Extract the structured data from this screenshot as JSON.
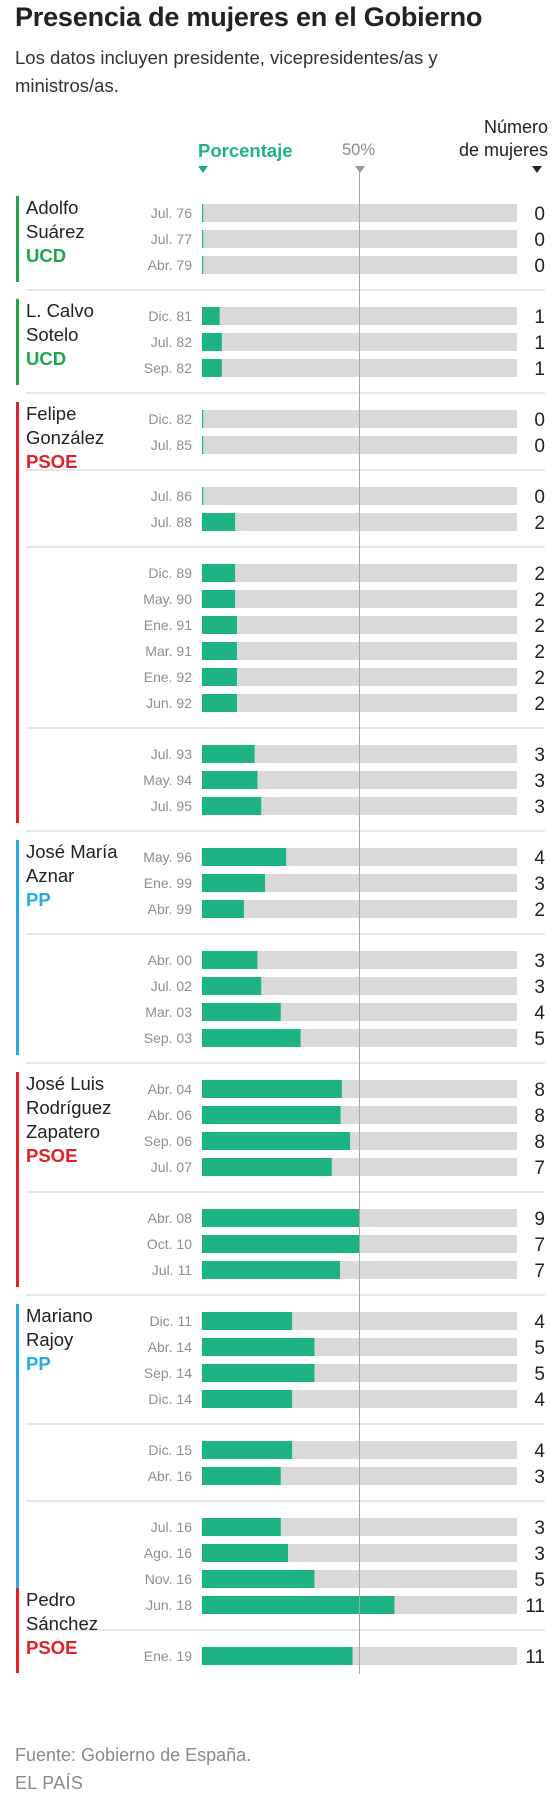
{
  "header": {
    "title": "Presencia de mujeres en el Gobierno",
    "subtitle": "Los datos incluyen presidente, vicepresidentes/as y ministros/as.",
    "percent_label": "Porcentaje",
    "midpoint_label": "50%",
    "count_label_line1": "Número",
    "count_label_line2": "de mujeres"
  },
  "footer": {
    "source": "Fuente: Gobierno de España.",
    "brand": "EL PAÍS"
  },
  "colors": {
    "bar_fill": "#1db385",
    "bar_track": "#d9d9d9",
    "UCD": "#1fa64a",
    "PSOE": "#e3202a",
    "PP": "#22aee3",
    "percent_label": "#1db385"
  },
  "chart_data": {
    "type": "bar",
    "orientation": "horizontal",
    "x_label": "Porcentaje",
    "x_range": [
      0,
      100
    ],
    "reference_line": 50,
    "presidents": [
      {
        "name_lines": [
          "Adolfo",
          "Suárez"
        ],
        "party": "UCD"
      },
      {
        "name_lines": [
          "L. Calvo",
          "Sotelo"
        ],
        "party": "UCD"
      },
      {
        "name_lines": [
          "Felipe",
          "González"
        ],
        "party": "PSOE"
      },
      {
        "name_lines": [
          "José María",
          "Aznar"
        ],
        "party": "PP"
      },
      {
        "name_lines": [
          "José Luis",
          "Rodríguez",
          "Zapatero"
        ],
        "party": "PSOE"
      },
      {
        "name_lines": [
          "Mariano",
          "Rajoy"
        ],
        "party": "PP"
      },
      {
        "name_lines": [
          "Pedro",
          "Sánchez"
        ],
        "party": "PSOE"
      }
    ],
    "groups": [
      {
        "president": 0,
        "rows": [
          {
            "date": "Jul. 76",
            "pct": 0,
            "count": 0
          },
          {
            "date": "Jul. 77",
            "pct": 0,
            "count": 0
          },
          {
            "date": "Abr. 79",
            "pct": 0,
            "count": 0
          }
        ]
      },
      {
        "president": 1,
        "rows": [
          {
            "date": "Dic. 81",
            "pct": 5.6,
            "count": 1
          },
          {
            "date": "Jul. 82",
            "pct": 6.3,
            "count": 1
          },
          {
            "date": "Sep. 82",
            "pct": 6.3,
            "count": 1
          }
        ]
      },
      {
        "president": 2,
        "rows": [
          {
            "date": "Dic. 82",
            "pct": 0,
            "count": 0
          },
          {
            "date": "Jul. 85",
            "pct": 0,
            "count": 0
          }
        ]
      },
      {
        "president": null,
        "rows": [
          {
            "date": "Jul. 86",
            "pct": 0,
            "count": 0
          },
          {
            "date": "Jul. 88",
            "pct": 10.5,
            "count": 2
          }
        ]
      },
      {
        "president": null,
        "rows": [
          {
            "date": "Dic. 89",
            "pct": 10.5,
            "count": 2
          },
          {
            "date": "May. 90",
            "pct": 10.5,
            "count": 2
          },
          {
            "date": "Ene. 91",
            "pct": 11.1,
            "count": 2
          },
          {
            "date": "Mar. 91",
            "pct": 11.1,
            "count": 2
          },
          {
            "date": "Ene. 92",
            "pct": 11.1,
            "count": 2
          },
          {
            "date": "Jun. 92",
            "pct": 11.1,
            "count": 2
          }
        ]
      },
      {
        "president": null,
        "rows": [
          {
            "date": "Jul. 93",
            "pct": 16.7,
            "count": 3
          },
          {
            "date": "May. 94",
            "pct": 17.6,
            "count": 3
          },
          {
            "date": "Jul. 95",
            "pct": 18.8,
            "count": 3
          }
        ]
      },
      {
        "president": 3,
        "rows": [
          {
            "date": "May. 96",
            "pct": 26.7,
            "count": 4
          },
          {
            "date": "Ene. 99",
            "pct": 20.0,
            "count": 3
          },
          {
            "date": "Abr. 99",
            "pct": 13.3,
            "count": 2
          }
        ]
      },
      {
        "president": null,
        "rows": [
          {
            "date": "Abr. 00",
            "pct": 17.6,
            "count": 3
          },
          {
            "date": "Jul. 02",
            "pct": 18.8,
            "count": 3
          },
          {
            "date": "Mar. 03",
            "pct": 25.0,
            "count": 4
          },
          {
            "date": "Sep. 03",
            "pct": 31.3,
            "count": 5
          }
        ]
      },
      {
        "president": 4,
        "rows": [
          {
            "date": "Abr. 04",
            "pct": 44.4,
            "count": 8
          },
          {
            "date": "Abr. 06",
            "pct": 44.0,
            "count": 8
          },
          {
            "date": "Sep. 06",
            "pct": 47.0,
            "count": 8
          },
          {
            "date": "Jul. 07",
            "pct": 41.2,
            "count": 7
          }
        ]
      },
      {
        "president": null,
        "rows": [
          {
            "date": "Abr. 08",
            "pct": 50.0,
            "count": 9
          },
          {
            "date": "Oct. 10",
            "pct": 50.0,
            "count": 7
          },
          {
            "date": "Jul. 11",
            "pct": 43.8,
            "count": 7
          }
        ]
      },
      {
        "president": 5,
        "rows": [
          {
            "date": "Dic. 11",
            "pct": 28.6,
            "count": 4
          },
          {
            "date": "Abr. 14",
            "pct": 35.7,
            "count": 5
          },
          {
            "date": "Sep. 14",
            "pct": 35.7,
            "count": 5
          },
          {
            "date": "Dic. 14",
            "pct": 28.6,
            "count": 4
          }
        ]
      },
      {
        "president": null,
        "rows": [
          {
            "date": "Dic. 15",
            "pct": 28.6,
            "count": 4
          },
          {
            "date": "Abr. 16",
            "pct": 25.0,
            "count": 3
          }
        ]
      },
      {
        "president": null,
        "rows": [
          {
            "date": "Jul. 16",
            "pct": 25.0,
            "count": 3
          },
          {
            "date": "Ago. 16",
            "pct": 27.3,
            "count": 3
          },
          {
            "date": "Nov. 16",
            "pct": 35.7,
            "count": 5
          },
          {
            "date": "Jun. 18",
            "pct": 61.1,
            "count": 11
          }
        ]
      },
      {
        "president": null,
        "rows": [
          {
            "date": "Ene. 19",
            "pct": 47.8,
            "count": 11
          }
        ]
      }
    ],
    "bars": [
      {
        "president": 0,
        "start_group": 0,
        "end_group": 0
      },
      {
        "president": 1,
        "start_group": 1,
        "end_group": 1
      },
      {
        "president": 2,
        "start_group": 2,
        "end_group": 5
      },
      {
        "president": 3,
        "start_group": 6,
        "end_group": 7
      },
      {
        "president": 4,
        "start_group": 8,
        "end_group": 9
      },
      {
        "president": 5,
        "start_group": 10,
        "end_group": 12,
        "end_row": 2
      },
      {
        "president": 6,
        "start_group": 12,
        "start_row": 3,
        "end_group": 13
      }
    ]
  }
}
